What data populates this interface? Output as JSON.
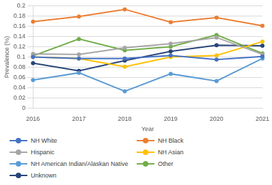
{
  "chart_data": {
    "type": "line",
    "x_label": "Year",
    "y_label": "Prevalence (%)",
    "categories": [
      "2016",
      "2017",
      "2018",
      "2019",
      "2020",
      "2021"
    ],
    "series": [
      {
        "name": "NH White",
        "color": "#4472c4",
        "values": [
          0.1,
          0.097,
          0.097,
          0.103,
          0.095,
          0.101
        ]
      },
      {
        "name": "NH Black",
        "color": "#ed7d31",
        "values": [
          0.169,
          0.179,
          0.193,
          0.168,
          0.177,
          0.161
        ]
      },
      {
        "name": "Hispanic",
        "color": "#a5a5a5",
        "values": [
          0.106,
          0.105,
          0.118,
          0.126,
          0.138,
          0.105
        ]
      },
      {
        "name": "NH Asian",
        "color": "#ffc000",
        "values": [
          0.1,
          0.097,
          0.081,
          0.1,
          0.103,
          0.13
        ]
      },
      {
        "name": "NH American Indian/Alaskan Native",
        "color": "#5b9bd5",
        "values": [
          0.055,
          0.069,
          0.033,
          0.067,
          0.053,
          0.097
        ]
      },
      {
        "name": "Other",
        "color": "#70ad47",
        "values": [
          0.102,
          0.135,
          0.113,
          0.12,
          0.143,
          0.107
        ]
      },
      {
        "name": "Unknown",
        "color": "#264478",
        "values": [
          0.088,
          0.073,
          0.093,
          0.111,
          0.123,
          0.122
        ]
      }
    ],
    "ylim": [
      0,
      0.2
    ],
    "yticks": [
      0,
      0.02,
      0.04,
      0.06,
      0.08,
      0.1,
      0.12,
      0.14,
      0.16,
      0.18,
      0.2
    ],
    "grid": true,
    "legend": "bottom",
    "marker": "circle",
    "line_style": "solid"
  }
}
